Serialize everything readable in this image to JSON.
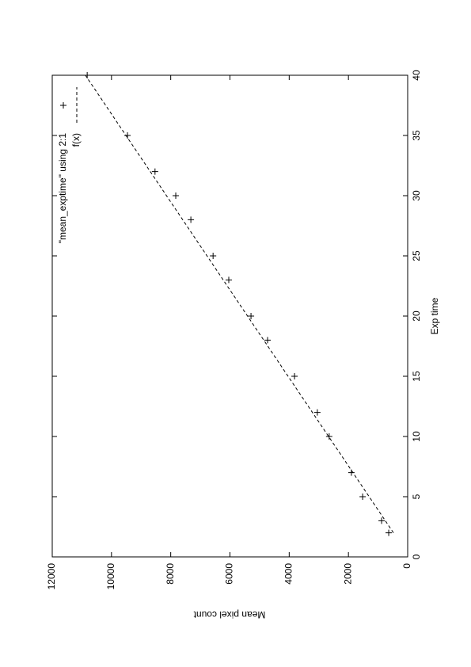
{
  "chart_data": {
    "type": "line",
    "xlabel": "Exp time",
    "ylabel": "Mean pixel count",
    "xlim": [
      0,
      40
    ],
    "xticks": [
      0,
      5,
      10,
      15,
      20,
      25,
      30,
      35,
      40
    ],
    "ylim": [
      0,
      12000
    ],
    "yticks": [
      0,
      2000,
      4000,
      6000,
      8000,
      10000,
      12000
    ],
    "rotation": -90,
    "legend": "top-right",
    "series": [
      {
        "name": "\"mean_exptime\" using 2:1",
        "style": "points",
        "color": "#000000",
        "x": [
          2,
          3,
          5,
          7,
          10,
          12,
          15,
          18,
          20,
          23,
          25,
          28,
          30,
          32,
          35,
          40
        ],
        "values": [
          640,
          880,
          1520,
          1900,
          2650,
          3050,
          3820,
          4730,
          5290,
          6040,
          6570,
          7320,
          7830,
          8530,
          9460,
          10820
        ]
      },
      {
        "name": "f(x)",
        "style": "dashed",
        "color": "#000000",
        "x": [
          2,
          40
        ],
        "values": [
          480,
          10880
        ]
      }
    ]
  }
}
